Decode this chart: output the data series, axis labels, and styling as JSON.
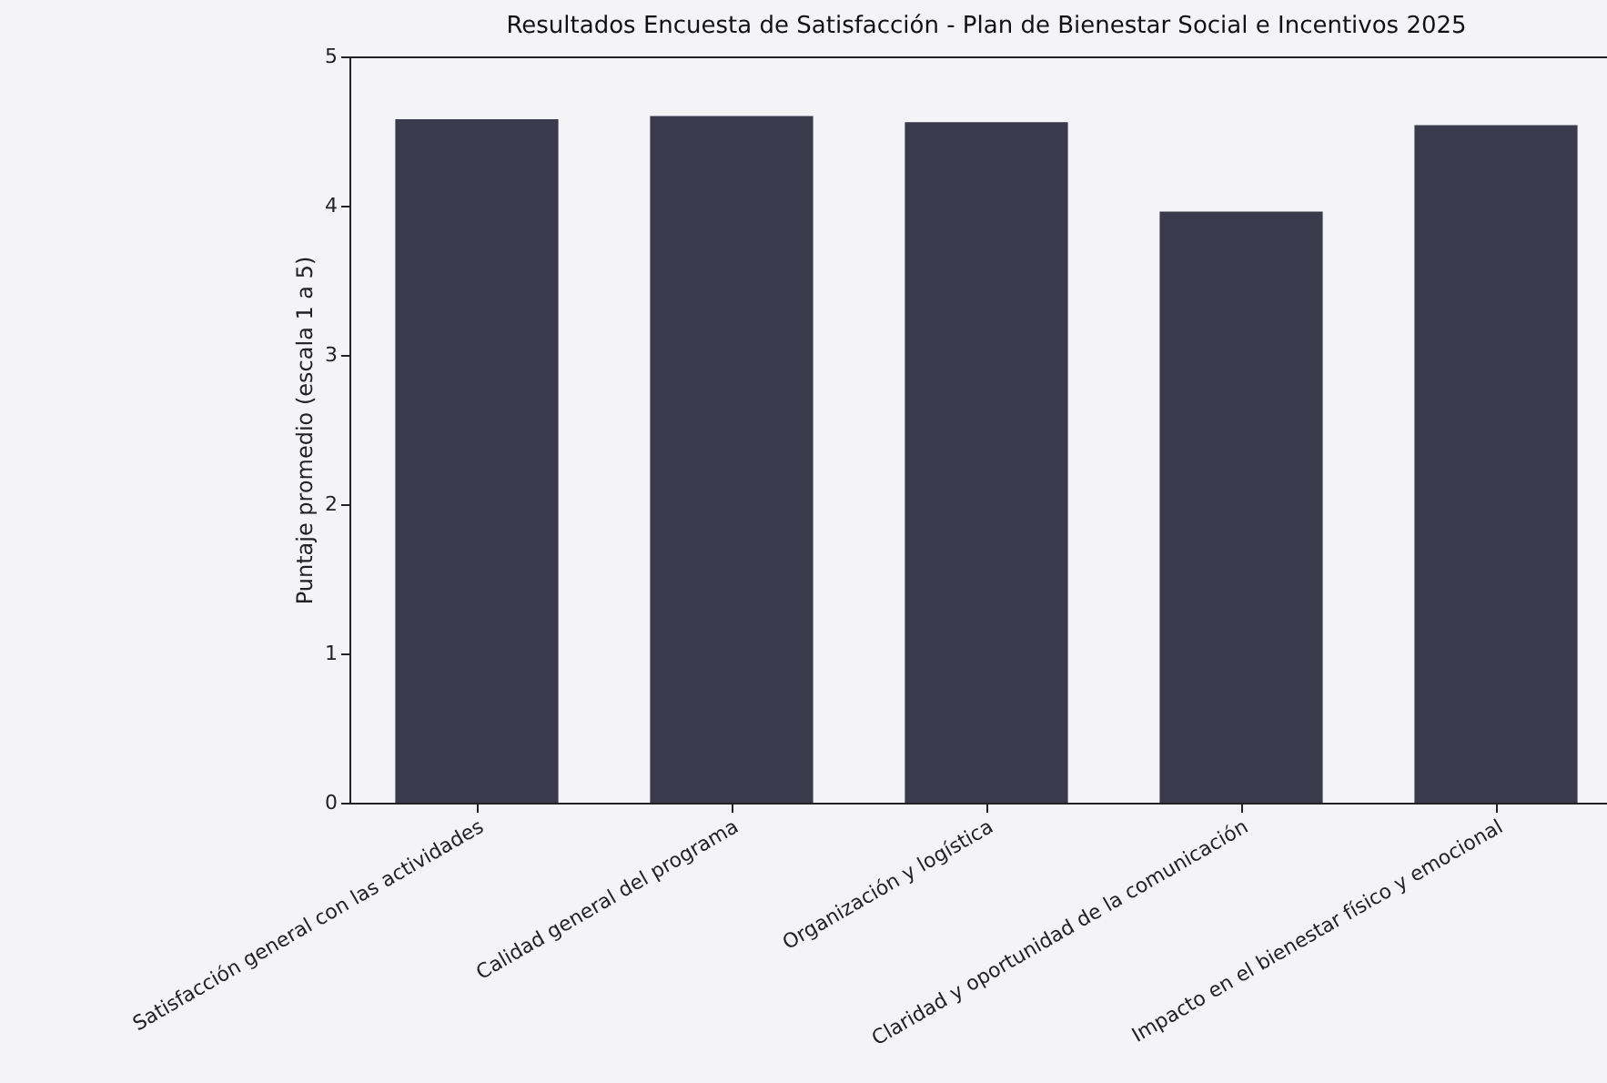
{
  "chart_data": {
    "type": "bar",
    "title": "Resultados Encuesta de Satisfacción - Plan de Bienestar Social e Incentivos 2025",
    "ylabel": "Puntaje promedio (escala 1 a 5)",
    "categories": [
      "Satisfacción general con las actividades",
      "Calidad general del programa",
      "Organización y logística",
      "Claridad y oportunidad de la comunicación",
      "Impacto en el bienestar físico y emocional"
    ],
    "values": [
      4.58,
      4.6,
      4.56,
      3.96,
      4.54
    ],
    "color": "#3b3a4c",
    "ylim": [
      0,
      5
    ],
    "yticks": [
      0,
      1,
      2,
      3,
      4,
      5
    ],
    "grid": false
  }
}
